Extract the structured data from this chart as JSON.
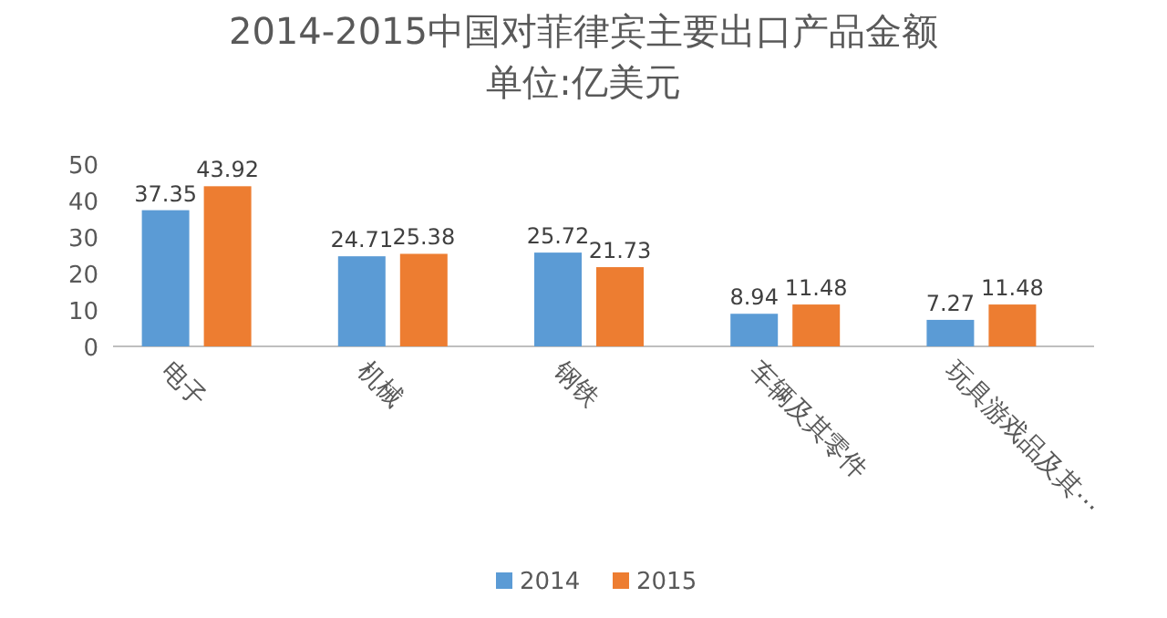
{
  "chart_data": {
    "type": "bar",
    "title": "2014-2015中国对菲律宾主要出口产品金额",
    "subtitle": "单位:亿美元",
    "categories": [
      "电子",
      "机械",
      "钢铁",
      "车辆及其零件",
      "玩具游戏品及其⋯"
    ],
    "series": [
      {
        "name": "2014",
        "color": "#5b9bd5",
        "values": [
          37.35,
          24.71,
          25.72,
          8.94,
          7.27
        ]
      },
      {
        "name": "2015",
        "color": "#ed7d31",
        "values": [
          43.92,
          25.38,
          21.73,
          11.48,
          11.48
        ]
      }
    ],
    "ylim": [
      0,
      50
    ],
    "yticks": [
      0,
      10,
      20,
      30,
      40,
      50
    ],
    "data_labels": true,
    "legend": "bottom",
    "grid": false
  }
}
